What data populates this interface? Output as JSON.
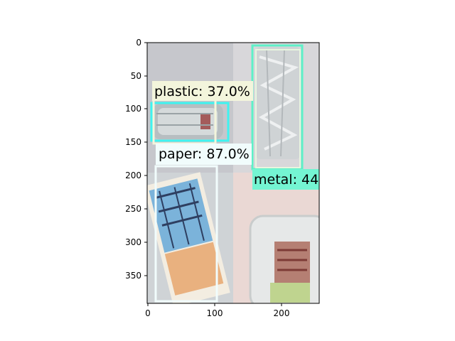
{
  "plot": {
    "x_ticks": [
      "0",
      "100",
      "200"
    ],
    "y_ticks": [
      "0",
      "50",
      "100",
      "150",
      "200",
      "250",
      "300",
      "350"
    ]
  },
  "image_scene": {
    "description_colors": {
      "background_top": "#c4c6cc",
      "background_bottom_left": "#c9cdd1",
      "background_bottom_right": "#e7d9d5",
      "bottle": "#b9c0c3",
      "metal_foil": "#d6d9da",
      "paper_blue": "#6fa6d2",
      "paper_orange": "#e6a06c",
      "tray_green": "#c8d8a8"
    }
  },
  "detections": [
    {
      "label": "plastic: 37.0%",
      "box_color": "#3ef3f0",
      "label_bg": "#f3f5dc"
    },
    {
      "label": "paper: 87.0%",
      "box_color": "#f1fcfc",
      "label_bg": "#f1fcfc"
    },
    {
      "label": "metal: 44",
      "box_color": "#5ef0c8",
      "label_bg": "#74f5d2",
      "inner_box_color": "#e7f6df"
    }
  ]
}
